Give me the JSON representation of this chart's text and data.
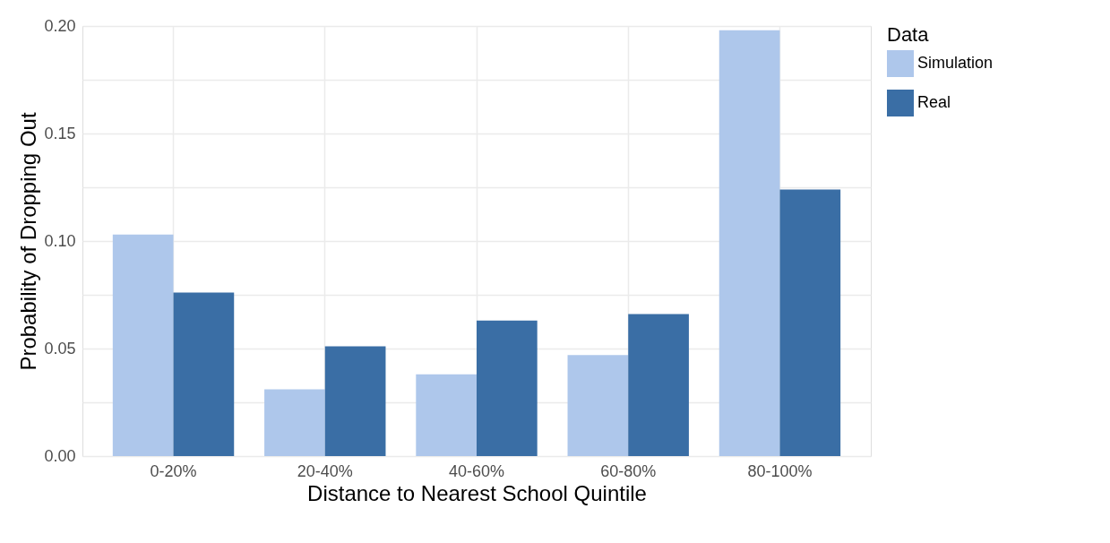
{
  "chart_data": {
    "type": "bar",
    "xlabel": "Distance to Nearest School Quintile",
    "ylabel": "Probability of Dropping Out",
    "legend_title": "Data",
    "categories": [
      "0-20%",
      "20-40%",
      "40-60%",
      "60-80%",
      "80-100%"
    ],
    "series": [
      {
        "name": "Simulation",
        "color": "#aec7eb",
        "values": [
          0.103,
          0.031,
          0.038,
          0.047,
          0.198
        ]
      },
      {
        "name": "Real",
        "color": "#3a6ea5",
        "values": [
          0.076,
          0.051,
          0.063,
          0.066,
          0.124
        ]
      }
    ],
    "ylim": [
      0,
      0.2
    ],
    "yticks": [
      {
        "value": 0,
        "label": "0.00"
      },
      {
        "value": 0.025,
        "label": null
      },
      {
        "value": 0.05,
        "label": "0.05"
      },
      {
        "value": 0.075,
        "label": null
      },
      {
        "value": 0.1,
        "label": "0.10"
      },
      {
        "value": 0.125,
        "label": null
      },
      {
        "value": 0.15,
        "label": "0.15"
      },
      {
        "value": 0.175,
        "label": null
      },
      {
        "value": 0.2,
        "label": "0.20"
      }
    ],
    "grid": true,
    "legend": "right"
  }
}
